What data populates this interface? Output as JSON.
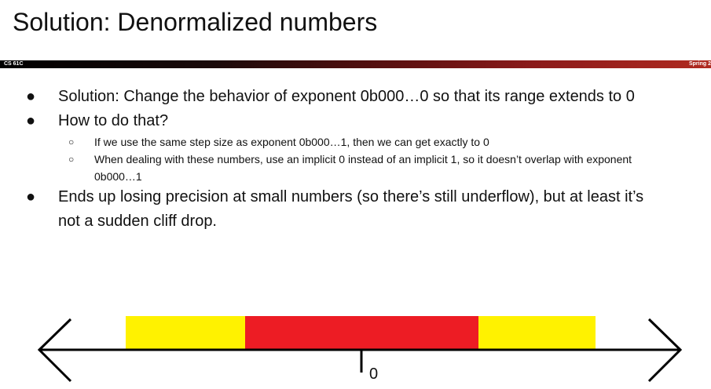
{
  "slide": {
    "title": "Solution: Denormalized numbers",
    "header_left": "CS 61C",
    "header_right": "Spring 2"
  },
  "bullets": {
    "b1": "Solution: Change the behavior of exponent 0b000…0 so that its range extends to 0",
    "b2": "How to do that?",
    "b2_sub1": "If we use the same step size as exponent 0b000…1, then we can get exactly to 0",
    "b2_sub2": "When dealing with these numbers, use an implicit 0 instead of an implicit 1, so it doesn’t overlap with exponent 0b000…1",
    "b3": "Ends up losing precision at small numbers (so there’s still underflow), but at least it’s not a sudden cliff drop."
  },
  "diagram": {
    "zero_label": "0",
    "colors": {
      "yellow": "#FFF200",
      "red": "#ED1C24",
      "line": "#000000"
    }
  }
}
